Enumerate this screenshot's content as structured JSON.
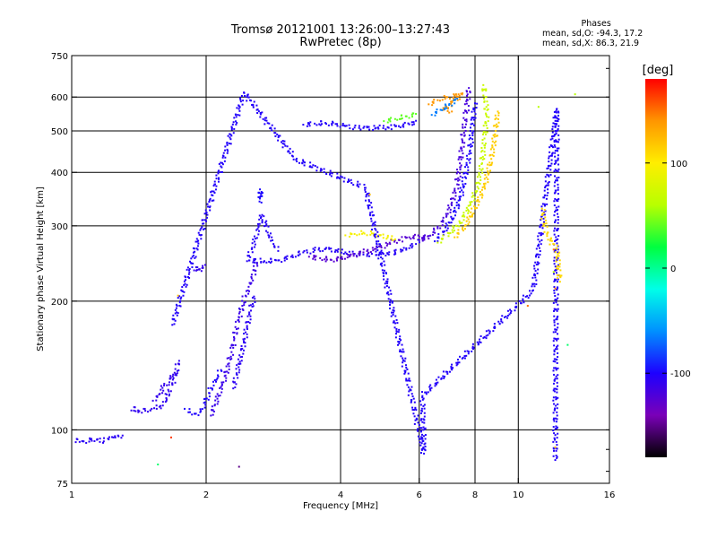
{
  "header": {
    "title": "Tromsø 20121001 13:26:00–13:27:43",
    "subtitle": "RwPretec (8p)"
  },
  "stats": {
    "heading": "Phases",
    "line_o": "mean, sd,O: -94.3, 17.2",
    "line_x": "mean, sd,X:  86.3, 21.9"
  },
  "colors": {
    "background": "#ffffff",
    "grid": "#000000",
    "text": "#000000"
  },
  "chart_data": {
    "type": "scatter",
    "xlabel": "Frequency [MHz]",
    "ylabel": "Stationary phase Virtual Height [km]",
    "xscale": "log",
    "yscale": "log",
    "xlim": [
      1,
      16
    ],
    "ylim": [
      75,
      750
    ],
    "x_ticks": [
      1,
      2,
      4,
      6,
      8,
      10,
      16
    ],
    "x_tick_labels": [
      "1",
      "2",
      "4",
      "6",
      "8",
      "10",
      "16"
    ],
    "x_grid": [
      2,
      4,
      6,
      8,
      10
    ],
    "y_ticks": [
      75,
      100,
      200,
      300,
      400,
      500,
      600,
      750
    ],
    "y_tick_labels": [
      "75",
      "100",
      "200",
      "300",
      "400",
      "500",
      "600",
      "750"
    ],
    "y_grid": [
      100,
      200,
      300,
      400,
      500,
      600
    ],
    "colorbar": {
      "label": "[deg]",
      "min": -180,
      "max": 180,
      "ticks": [
        100,
        0,
        -100
      ],
      "tick_labels": [
        "100",
        "0",
        "-100"
      ],
      "stops": [
        "#000000",
        "#7a00b8",
        "#1d00ff",
        "#0090ff",
        "#00ffe8",
        "#00ff40",
        "#b8ff00",
        "#ffee00",
        "#ff9600",
        "#ff0000"
      ]
    },
    "series": [
      {
        "phase": -105,
        "points": [
          [
            1.0,
            94
          ],
          [
            1.03,
            95
          ],
          [
            1.06,
            94
          ],
          [
            1.1,
            95
          ],
          [
            1.14,
            95
          ],
          [
            1.18,
            94
          ],
          [
            1.21,
            95
          ],
          [
            1.24,
            96
          ],
          [
            1.27,
            97
          ],
          [
            1.3,
            97
          ]
        ]
      },
      {
        "phase": -108,
        "points": [
          [
            1.36,
            111
          ],
          [
            1.38,
            113
          ],
          [
            1.41,
            110
          ],
          [
            1.45,
            112
          ],
          [
            1.5,
            111
          ],
          [
            1.55,
            112
          ],
          [
            1.6,
            114
          ],
          [
            1.63,
            117
          ],
          [
            1.65,
            123
          ],
          [
            1.68,
            128
          ],
          [
            1.71,
            135
          ],
          [
            1.74,
            145
          ]
        ]
      },
      {
        "phase": -110,
        "points": [
          [
            1.52,
            117
          ],
          [
            1.57,
            121
          ],
          [
            1.61,
            127
          ],
          [
            1.66,
            132
          ],
          [
            1.7,
            136
          ]
        ]
      },
      {
        "phase": -100,
        "points": [
          [
            1.79,
            112
          ],
          [
            1.84,
            110
          ],
          [
            1.89,
            109
          ],
          [
            1.94,
            110
          ],
          [
            1.99,
            116
          ],
          [
            2.03,
            122
          ],
          [
            2.08,
            127
          ],
          [
            2.12,
            132
          ],
          [
            2.16,
            138
          ]
        ]
      },
      {
        "phase": -112,
        "points": [
          [
            2.05,
            108
          ],
          [
            2.09,
            114
          ],
          [
            2.13,
            120
          ],
          [
            2.17,
            127
          ],
          [
            2.21,
            134
          ],
          [
            2.25,
            143
          ],
          [
            2.28,
            152
          ],
          [
            2.31,
            162
          ],
          [
            2.34,
            172
          ],
          [
            2.37,
            183
          ],
          [
            2.41,
            195
          ],
          [
            2.45,
            206
          ],
          [
            2.49,
            216
          ],
          [
            2.53,
            226
          ],
          [
            2.57,
            236
          ],
          [
            2.6,
            246
          ]
        ]
      },
      {
        "phase": -106,
        "points": [
          [
            2.3,
            125
          ],
          [
            2.34,
            135
          ],
          [
            2.39,
            148
          ],
          [
            2.43,
            160
          ],
          [
            2.47,
            175
          ],
          [
            2.52,
            190
          ],
          [
            2.56,
            205
          ]
        ]
      },
      {
        "phase": -104,
        "points": [
          [
            2.47,
            248
          ],
          [
            2.53,
            265
          ],
          [
            2.58,
            280
          ],
          [
            2.62,
            298
          ],
          [
            2.67,
            318
          ],
          [
            2.72,
            300
          ],
          [
            2.77,
            284
          ],
          [
            2.83,
            272
          ],
          [
            2.9,
            262
          ]
        ]
      },
      {
        "phase": -98,
        "points": [
          [
            2.62,
            350
          ],
          [
            2.63,
            358
          ],
          [
            2.64,
            365
          ],
          [
            2.66,
            340
          ]
        ]
      },
      {
        "phase": -110,
        "points": [
          [
            1.88,
            236
          ],
          [
            1.9,
            240
          ],
          [
            1.93,
            237
          ],
          [
            1.96,
            239
          ],
          [
            1.99,
            243
          ]
        ]
      },
      {
        "phase": -104,
        "points": [
          [
            2.5,
            249
          ],
          [
            2.7,
            248
          ],
          [
            2.9,
            249
          ],
          [
            3.1,
            254
          ],
          [
            3.3,
            260
          ],
          [
            3.5,
            263
          ],
          [
            3.7,
            265
          ],
          [
            3.9,
            263
          ],
          [
            4.1,
            260
          ],
          [
            4.3,
            258
          ],
          [
            4.5,
            257
          ],
          [
            4.7,
            258
          ],
          [
            4.9,
            258
          ],
          [
            5.1,
            258
          ],
          [
            5.3,
            260
          ],
          [
            5.5,
            263
          ],
          [
            5.7,
            266
          ],
          [
            5.9,
            272
          ],
          [
            6.0,
            278
          ]
        ]
      },
      {
        "phase": -125,
        "points": [
          [
            3.4,
            254
          ],
          [
            3.6,
            252
          ],
          [
            3.8,
            250
          ],
          [
            4.0,
            252
          ],
          [
            4.2,
            255
          ],
          [
            4.5,
            260
          ],
          [
            4.8,
            265
          ],
          [
            5.1,
            272
          ],
          [
            5.4,
            278
          ],
          [
            5.7,
            282
          ],
          [
            6.0,
            283
          ],
          [
            6.3,
            280
          ]
        ]
      },
      {
        "phase": 95,
        "points": [
          [
            4.1,
            285
          ],
          [
            4.3,
            287
          ],
          [
            4.5,
            289
          ],
          [
            4.7,
            288
          ],
          [
            4.9,
            285
          ],
          [
            5.1,
            282
          ],
          [
            5.3,
            279
          ]
        ]
      },
      {
        "phase": -102,
        "points": [
          [
            3.3,
            517
          ],
          [
            3.5,
            520
          ],
          [
            3.7,
            522
          ],
          [
            3.9,
            519
          ],
          [
            4.1,
            513
          ],
          [
            4.3,
            509
          ],
          [
            4.5,
            508
          ],
          [
            4.8,
            508
          ],
          [
            5.1,
            510
          ],
          [
            5.4,
            513
          ],
          [
            5.7,
            518
          ],
          [
            5.9,
            528
          ]
        ]
      },
      {
        "phase": 40,
        "points": [
          [
            5.0,
            527
          ],
          [
            5.3,
            533
          ],
          [
            5.6,
            541
          ],
          [
            5.9,
            548
          ]
        ]
      },
      {
        "phase": -118,
        "points": [
          [
            6.0,
            278
          ],
          [
            6.3,
            284
          ],
          [
            6.6,
            296
          ],
          [
            6.9,
            315
          ],
          [
            7.1,
            340
          ],
          [
            7.3,
            375
          ],
          [
            7.4,
            420
          ],
          [
            7.5,
            470
          ],
          [
            7.6,
            530
          ],
          [
            7.7,
            590
          ],
          [
            7.75,
            630
          ]
        ]
      },
      {
        "phase": -100,
        "points": [
          [
            6.5,
            276
          ],
          [
            6.8,
            290
          ],
          [
            7.1,
            312
          ],
          [
            7.4,
            345
          ],
          [
            7.6,
            390
          ],
          [
            7.8,
            450
          ],
          [
            7.9,
            520
          ],
          [
            8.0,
            580
          ]
        ]
      },
      {
        "phase": 70,
        "points": [
          [
            6.6,
            274
          ],
          [
            7.0,
            288
          ],
          [
            7.4,
            305
          ],
          [
            7.8,
            335
          ],
          [
            8.1,
            370
          ],
          [
            8.3,
            420
          ],
          [
            8.4,
            480
          ],
          [
            8.5,
            540
          ],
          [
            8.45,
            600
          ],
          [
            8.35,
            640
          ]
        ]
      },
      {
        "phase": 115,
        "points": [
          [
            7.2,
            282
          ],
          [
            7.6,
            300
          ],
          [
            8.0,
            330
          ],
          [
            8.4,
            370
          ],
          [
            8.7,
            430
          ],
          [
            8.9,
            500
          ],
          [
            9.0,
            555
          ]
        ]
      },
      {
        "phase": 140,
        "points": [
          [
            6.3,
            577
          ],
          [
            6.6,
            590
          ],
          [
            6.9,
            600
          ],
          [
            7.2,
            605
          ],
          [
            7.5,
            612
          ],
          [
            6.8,
            560
          ],
          [
            7.1,
            555
          ]
        ]
      },
      {
        "phase": -65,
        "points": [
          [
            6.4,
            545
          ],
          [
            6.7,
            560
          ],
          [
            7.0,
            575
          ],
          [
            7.3,
            595
          ]
        ]
      },
      {
        "phase": -102,
        "points": [
          [
            1.68,
            176
          ],
          [
            2.43,
            615
          ],
          [
            3.18,
            428
          ],
          [
            4.55,
            368
          ],
          [
            6.15,
            88
          ],
          [
            6.1,
            120
          ],
          [
            10.8,
            212
          ],
          [
            12.2,
            563
          ],
          [
            12.1,
            85
          ]
        ]
      },
      {
        "phase": 110,
        "points": [
          [
            11.3,
            329
          ],
          [
            11.6,
            284
          ],
          [
            12.2,
            265
          ],
          [
            12.4,
            222
          ]
        ]
      },
      {
        "phase": 150,
        "points": [
          [
            10.5,
            195
          ],
          [
            12.1,
            214
          ],
          [
            12.0,
            264
          ]
        ]
      },
      {
        "phase": 60,
        "points": [
          [
            11.1,
            569
          ],
          [
            12.0,
            234
          ],
          [
            13.4,
            609
          ]
        ]
      },
      {
        "phase": 165,
        "points": [
          [
            1.67,
            96
          ]
        ]
      },
      {
        "phase": 10,
        "points": [
          [
            1.56,
            83
          ],
          [
            12.9,
            158
          ]
        ]
      },
      {
        "phase": 120,
        "points": [
          [
            1.73,
            206
          ],
          [
            4.65,
            355
          ],
          [
            12.1,
            91
          ]
        ]
      },
      {
        "phase": -150,
        "points": [
          [
            2.37,
            82
          ]
        ]
      }
    ]
  }
}
